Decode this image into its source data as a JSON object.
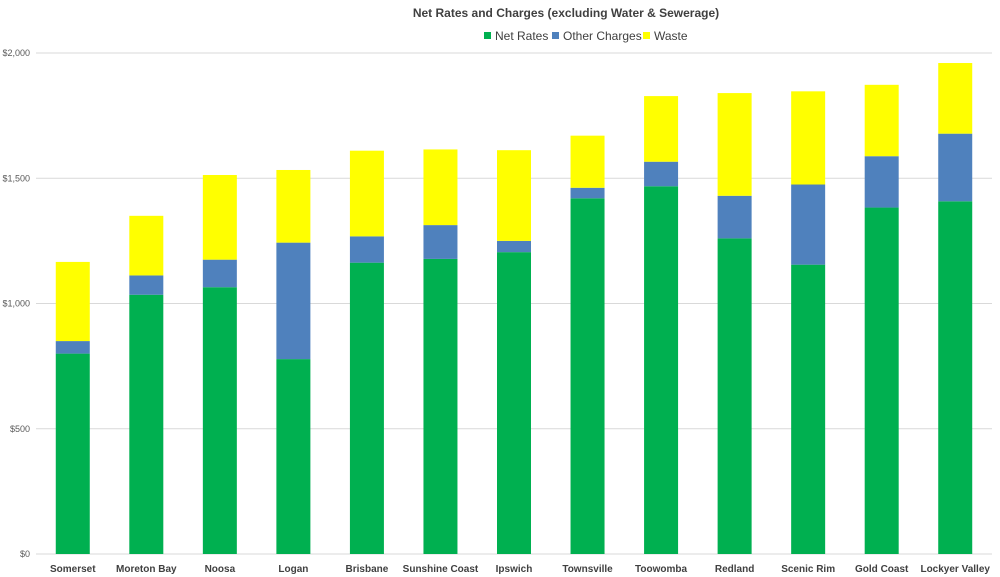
{
  "chart_data": {
    "type": "bar",
    "stacked": true,
    "title": "Net Rates and Charges (excluding Water & Sewerage)",
    "xlabel": "",
    "ylabel": "",
    "ylim": [
      0,
      2000
    ],
    "yticks": [
      0,
      500,
      1000,
      1500,
      2000
    ],
    "ytick_labels": [
      "$0",
      "$500",
      "$1,000",
      "$1,500",
      "$2,000"
    ],
    "grid": true,
    "legend_position": "top-center",
    "categories": [
      "Somerset",
      "Moreton Bay",
      "Noosa",
      "Logan",
      "Brisbane",
      "Sunshine Coast",
      "Ipswich",
      "Townsville",
      "Toowomba",
      "Redland",
      "Scenic Rim",
      "Gold Coast",
      "Lockyer Valley"
    ],
    "series": [
      {
        "name": "Net Rates",
        "color": "#00b050",
        "values": [
          800,
          1035,
          1065,
          778,
          1163,
          1178,
          1205,
          1420,
          1468,
          1260,
          1155,
          1383,
          1408
        ]
      },
      {
        "name": "Other Charges",
        "color": "#4f81bd",
        "values": [
          50,
          77,
          110,
          465,
          105,
          135,
          45,
          42,
          98,
          170,
          320,
          205,
          270
        ]
      },
      {
        "name": "Waste",
        "color": "#ffff00",
        "values": [
          316,
          238,
          338,
          290,
          342,
          302,
          362,
          208,
          262,
          410,
          372,
          285,
          282
        ]
      }
    ]
  }
}
